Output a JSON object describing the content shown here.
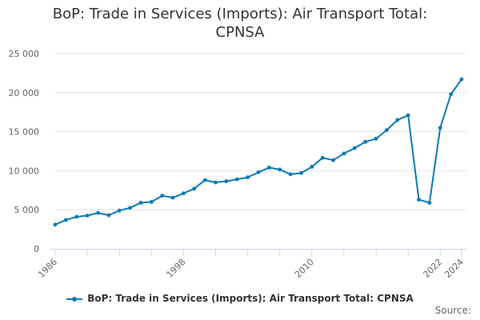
{
  "chart_data": {
    "type": "line",
    "title_lines": [
      "BoP: Trade in Services (Imports): Air Transport Total:",
      "CPNSA"
    ],
    "xlabel": "",
    "ylabel": "",
    "x_tick_labels": [
      "1986",
      "1998",
      "2010",
      "2022",
      "2024"
    ],
    "y_tick_labels": [
      "0",
      "5 000",
      "10 000",
      "15 000",
      "20 000",
      "25 000"
    ],
    "y_ticks": [
      0,
      5000,
      10000,
      15000,
      20000,
      25000
    ],
    "x_ticks": [
      1986,
      1998,
      2010,
      2022,
      2024
    ],
    "ylim": [
      0,
      25000
    ],
    "xlim": [
      1986,
      2024
    ],
    "grid": true,
    "legend_position": "bottom",
    "colors": {
      "series": "#0b7ab6",
      "grid": "#e6e6e6",
      "axis": "#ccd6eb"
    },
    "x": [
      1986,
      1987,
      1988,
      1989,
      1990,
      1991,
      1992,
      1993,
      1994,
      1995,
      1996,
      1997,
      1998,
      1999,
      2000,
      2001,
      2002,
      2003,
      2004,
      2005,
      2006,
      2007,
      2008,
      2009,
      2010,
      2011,
      2012,
      2013,
      2014,
      2015,
      2016,
      2017,
      2018,
      2019,
      2020,
      2021,
      2022,
      2023,
      2024
    ],
    "series": [
      {
        "name": "BoP: Trade in Services (Imports): Air Transport Total: CPNSA",
        "values": [
          3100,
          3700,
          4100,
          4250,
          4600,
          4300,
          4900,
          5250,
          5900,
          6000,
          6800,
          6550,
          7100,
          7700,
          8800,
          8500,
          8650,
          8900,
          9150,
          9800,
          10400,
          10150,
          9550,
          9700,
          10500,
          11650,
          11350,
          12200,
          12900,
          13700,
          14100,
          15200,
          16500,
          17100,
          6300,
          5900,
          15500,
          19800,
          21700
        ]
      }
    ]
  },
  "legend": {
    "label": "BoP: Trade in Services (Imports): Air Transport Total: CPNSA"
  },
  "source_label": "Source:"
}
